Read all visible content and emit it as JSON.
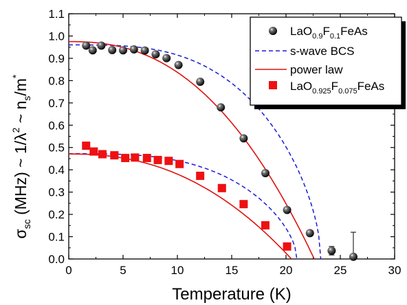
{
  "chart_data": {
    "type": "scatter",
    "xlabel": "Temperature (K)",
    "ylabel_parts": {
      "sigma": "σ",
      "sc": "sc",
      "mid": " (MHz) ~ 1/λ",
      "sup2": "2",
      "tail": " ~ n",
      "s": "s",
      "slash": "/m",
      "star": "*"
    },
    "xlim": [
      0,
      30
    ],
    "ylim": [
      0.0,
      1.1
    ],
    "xticks": [
      0,
      5,
      10,
      15,
      20,
      25,
      30
    ],
    "yticks": [
      "0.0",
      "0.1",
      "0.2",
      "0.3",
      "0.4",
      "0.5",
      "0.6",
      "0.7",
      "0.8",
      "0.9",
      "1.0",
      "1.1"
    ],
    "legend_position": "top-right",
    "legend": [
      {
        "id": "s1",
        "text": "LaO",
        "sub1": "0.9",
        "text2": "F",
        "sub2": "0.1",
        "text3": "FeAs",
        "marker": "sphere"
      },
      {
        "id": "bcs",
        "text": "s-wave BCS",
        "marker": "dash-line"
      },
      {
        "id": "pl",
        "text": "power law",
        "marker": "solid-line"
      },
      {
        "id": "s2",
        "text": "LaO",
        "sub1": "0.925",
        "text2": "F",
        "sub2": "0.075",
        "text3": "FeAs",
        "marker": "square"
      }
    ],
    "colors": {
      "sphere": "#111111",
      "square": "#ee1111",
      "bcs": "#1a1ad6",
      "power": "#e01010"
    },
    "series": [
      {
        "name": "LaO0.9F0.1FeAs",
        "marker": "sphere",
        "points": [
          [
            1.6,
            0.957
          ],
          [
            2.2,
            0.936
          ],
          [
            3.0,
            0.957
          ],
          [
            4.0,
            0.937
          ],
          [
            5.0,
            0.936
          ],
          [
            6.0,
            0.94
          ],
          [
            7.0,
            0.935
          ],
          [
            8.0,
            0.918
          ],
          [
            9.0,
            0.901
          ],
          [
            10.1,
            0.87
          ],
          [
            12.1,
            0.795
          ],
          [
            14.0,
            0.68
          ],
          [
            16.1,
            0.541
          ],
          [
            18.1,
            0.385
          ],
          [
            20.1,
            0.22
          ],
          [
            22.2,
            0.116
          ],
          [
            24.2,
            0.037
          ],
          [
            26.2,
            0.01
          ]
        ],
        "error_bars": [
          {
            "x": 24.2,
            "y": 0.037,
            "low": 0.018,
            "high": 0.056
          },
          {
            "x": 26.2,
            "y": 0.01,
            "low": 0.0,
            "high": 0.12
          }
        ]
      },
      {
        "name": "LaO0.925F0.075FeAs",
        "marker": "square",
        "points": [
          [
            1.6,
            0.508
          ],
          [
            2.3,
            0.482
          ],
          [
            3.1,
            0.47
          ],
          [
            4.2,
            0.465
          ],
          [
            5.2,
            0.453
          ],
          [
            6.1,
            0.455
          ],
          [
            7.2,
            0.453
          ],
          [
            8.2,
            0.444
          ],
          [
            9.2,
            0.44
          ],
          [
            10.2,
            0.426
          ],
          [
            12.1,
            0.373
          ],
          [
            14.1,
            0.318
          ],
          [
            16.1,
            0.246
          ],
          [
            18.1,
            0.151
          ],
          [
            20.1,
            0.056
          ]
        ]
      }
    ],
    "fits": [
      {
        "name": "s-wave BCS (LaO0.9F0.1FeAs)",
        "style": "dash",
        "amplitude": 0.96,
        "Tc": 23.2,
        "model": "bcs"
      },
      {
        "name": "power law (LaO0.9F0.1FeAs)",
        "style": "solid",
        "amplitude": 0.975,
        "Tc": 22.6,
        "exponent": 2.4,
        "model": "power"
      },
      {
        "name": "s-wave BCS (LaO0.925F0.075FeAs)",
        "style": "dash",
        "amplitude": 0.472,
        "Tc": 21.0,
        "model": "bcs"
      },
      {
        "name": "power law (LaO0.925F0.075FeAs)",
        "style": "solid",
        "amplitude": 0.471,
        "Tc": 20.5,
        "exponent": 2.3,
        "model": "power"
      }
    ]
  }
}
